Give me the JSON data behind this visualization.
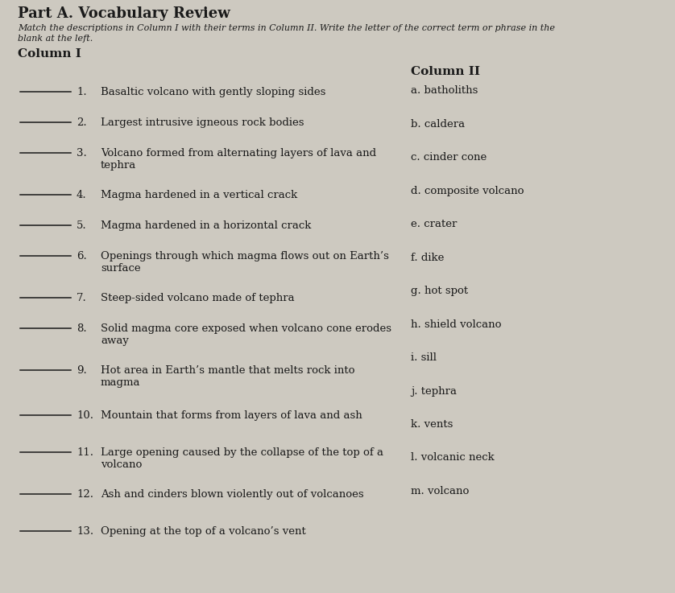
{
  "title": "Part A. Vocabulary Review",
  "subtitle_line1": "Match the descriptions in Column I with their terms in Column II. Write the letter of the correct term or phrase in the",
  "subtitle_line2": "blank at the left.",
  "col1_header": "Column I",
  "col2_header": "Column II",
  "col1_items": [
    {
      "num": "1.",
      "text": "Basaltic volcano with gently sloping sides",
      "lines": 1
    },
    {
      "num": "2.",
      "text": "Largest intrusive igneous rock bodies",
      "lines": 1
    },
    {
      "num": "3.",
      "text": "Volcano formed from alternating layers of lava and\ntephra",
      "lines": 2
    },
    {
      "num": "4.",
      "text": "Magma hardened in a vertical crack",
      "lines": 1
    },
    {
      "num": "5.",
      "text": "Magma hardened in a horizontal crack",
      "lines": 1
    },
    {
      "num": "6.",
      "text": "Openings through which magma flows out on Earth’s\nsurface",
      "lines": 2
    },
    {
      "num": "7.",
      "text": "Steep-sided volcano made of tephra",
      "lines": 1
    },
    {
      "num": "8.",
      "text": "Solid magma core exposed when volcano cone erodes\naway",
      "lines": 2
    },
    {
      "num": "9.",
      "text": "Hot area in Earth’s mantle that melts rock into\nmagma",
      "lines": 2
    },
    {
      "num": "10.",
      "text": "Mountain that forms from layers of lava and ash",
      "lines": 1
    },
    {
      "num": "11.",
      "text": "Large opening caused by the collapse of the top of a\nvolcano",
      "lines": 2
    },
    {
      "num": "12.",
      "text": "Ash and cinders blown violently out of volcanoes",
      "lines": 1
    },
    {
      "num": "13.",
      "text": "Opening at the top of a volcano’s vent",
      "lines": 1
    }
  ],
  "col2_items": [
    "a. batholiths",
    "b. caldera",
    "c. cinder cone",
    "d. composite volcano",
    "e. crater",
    "f. dike",
    "g. hot spot",
    "h. shield volcano",
    "i. sill",
    "j. tephra",
    "k. vents",
    "l. volcanic neck",
    "m. volcano"
  ],
  "bg_color": "#cdc9c0",
  "text_color": "#1a1a1a",
  "title_fontsize": 13,
  "subtitle_fontsize": 8.0,
  "header_fontsize": 11,
  "body_fontsize": 9.5,
  "col2_fontsize": 9.5
}
